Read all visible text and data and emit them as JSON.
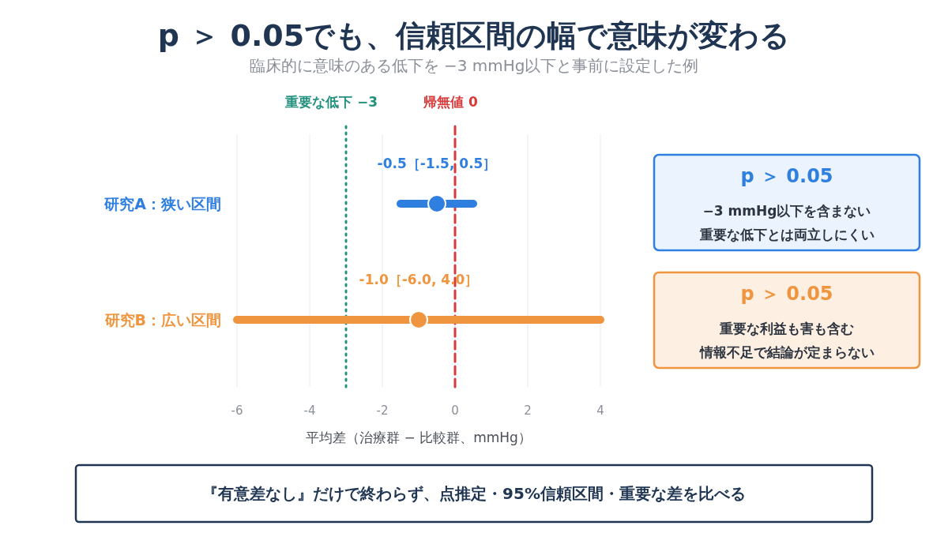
{
  "chart_data": {
    "type": "scatter",
    "title": "p ＞ 0.05でも、信頼区間の幅で意味が変わる",
    "subtitle": "臨床的に意味のある低下を −3 mmHg以下と事前に設定した例",
    "xlabel": "平均差（治療群 − 比較群、mmHg）",
    "orientation": "horizontal",
    "marker": "circle",
    "categories": [
      "研究A：狭い区間",
      "研究B：広い区間"
    ],
    "values": [
      -0.5,
      -1.0
    ],
    "colors": [
      "#2f7fe0",
      "#f0953f"
    ],
    "errors": [
      1.0,
      5.0
    ],
    "value_labels": [
      "-0.5［-1.5, 0.5］",
      "-1.0［-6.0, 4.0］"
    ],
    "xlim": [
      -6,
      4
    ],
    "xticks": [
      -6,
      -4,
      -2,
      0,
      2,
      4
    ],
    "grid": "x",
    "ref_lines": [
      {
        "axis": "x",
        "value": -3,
        "label": "重要な低下 −3",
        "color": "#23917e",
        "line_style": "dotted"
      },
      {
        "axis": "x",
        "value": 0,
        "label": "帰無値 0",
        "color": "#d83a3a",
        "line_style": "dashed"
      }
    ],
    "annotations": [
      "p ＞ 0.05",
      "−3 mmHg以下を含まない",
      "重要な低下とは両立しにくい",
      "p ＞ 0.05",
      "重要な利益も害も含む",
      "情報不足で結論が定まらない",
      "『有意差なし』だけで終わらず、点推定・95%信頼区間・重要な差を比べる"
    ]
  }
}
